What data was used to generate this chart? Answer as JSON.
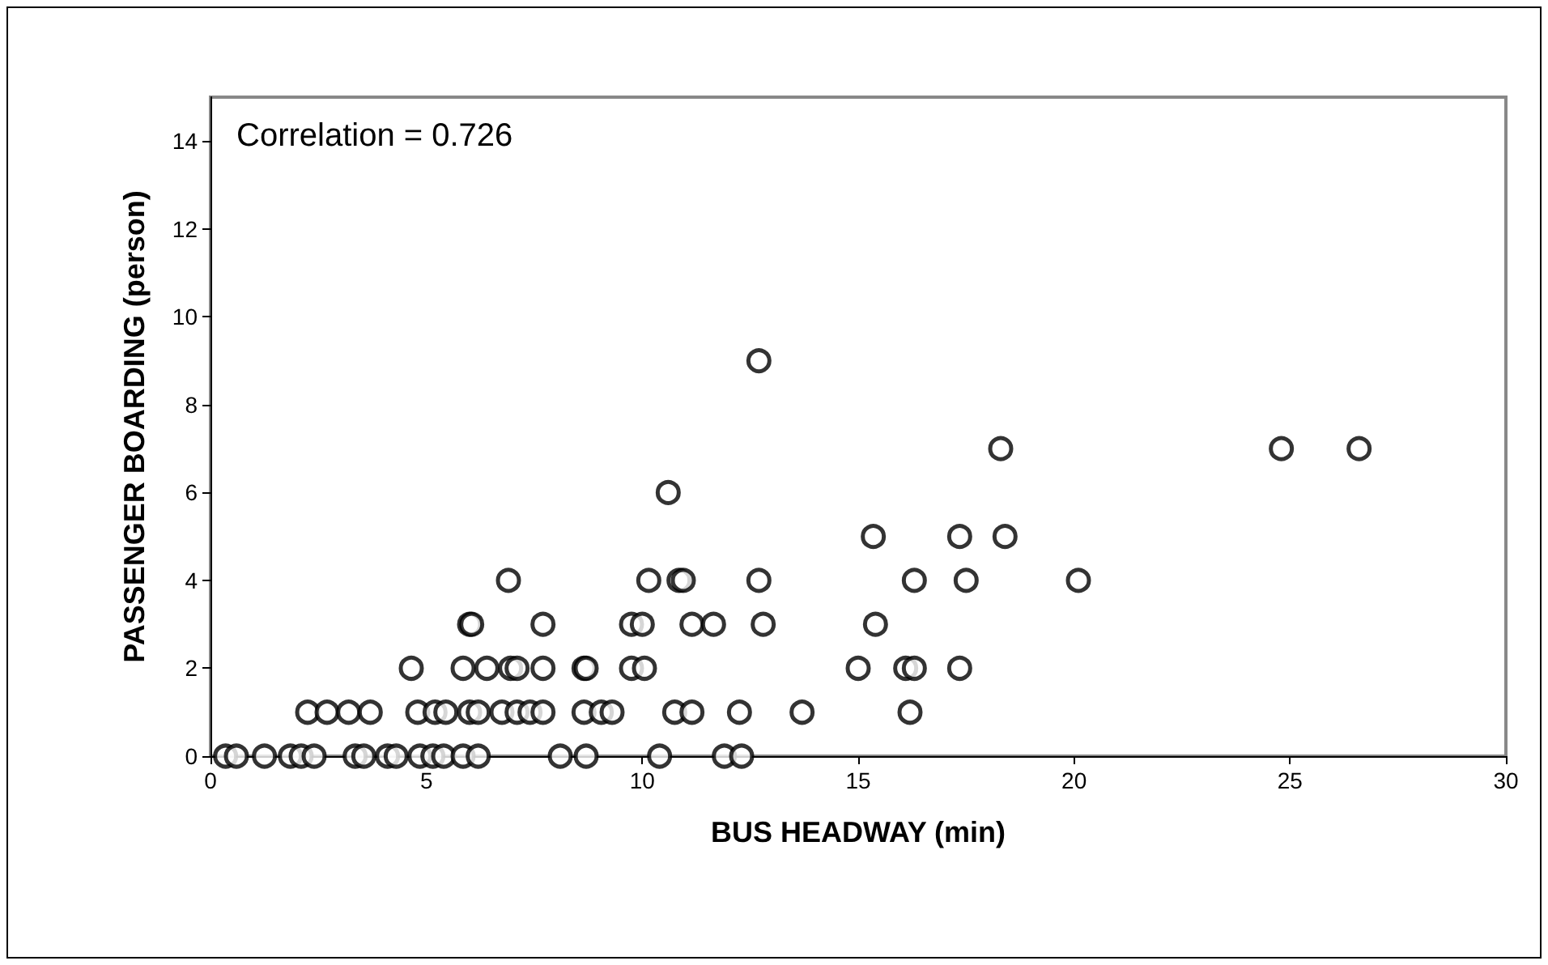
{
  "chart_data": {
    "type": "scatter",
    "xlabel": "BUS HEADWAY (min)",
    "ylabel": "PASSENGER BOARDING (person)",
    "annotations": [
      "Correlation = 0.726"
    ],
    "marker": "circle",
    "grid": false,
    "xlim": [
      0,
      30
    ],
    "xticks": [
      0,
      5,
      10,
      15,
      20,
      25,
      30
    ],
    "ylim": [
      0,
      15
    ],
    "yticks": [
      0,
      2,
      4,
      6,
      8,
      10,
      12,
      14
    ],
    "series": [
      {
        "color": "#000000",
        "x": [
          0.35,
          0.6,
          1.25,
          1.85,
          2.1,
          2.4,
          3.35,
          3.55,
          4.1,
          4.3,
          4.85,
          5.15,
          5.4,
          5.85,
          6.2,
          8.1,
          8.7,
          10.4,
          11.9,
          12.3,
          2.25,
          2.7,
          3.2,
          3.7,
          4.8,
          5.2,
          5.45,
          6.0,
          6.2,
          6.75,
          7.1,
          7.4,
          7.7,
          8.65,
          9.05,
          9.3,
          10.75,
          11.15,
          12.25,
          13.7,
          16.2,
          4.65,
          5.85,
          6.4,
          6.95,
          7.1,
          7.7,
          8.65,
          8.7,
          9.75,
          10.05,
          15.0,
          16.1,
          16.3,
          17.35,
          6.0,
          6.05,
          7.7,
          9.75,
          10.0,
          11.15,
          11.65,
          12.8,
          15.4,
          6.9,
          10.15,
          10.85,
          10.95,
          12.7,
          16.3,
          17.5,
          20.1,
          15.35,
          17.35,
          18.4,
          10.6,
          18.3,
          24.8,
          26.6,
          12.7
        ],
        "values": [
          0,
          0,
          0,
          0,
          0,
          0,
          0,
          0,
          0,
          0,
          0,
          0,
          0,
          0,
          0,
          0,
          0,
          0,
          0,
          0,
          1,
          1,
          1,
          1,
          1,
          1,
          1,
          1,
          1,
          1,
          1,
          1,
          1,
          1,
          1,
          1,
          1,
          1,
          1,
          1,
          1,
          2,
          2,
          2,
          2,
          2,
          2,
          2,
          2,
          2,
          2,
          2,
          2,
          2,
          2,
          3,
          3,
          3,
          3,
          3,
          3,
          3,
          3,
          3,
          4,
          4,
          4,
          4,
          4,
          4,
          4,
          4,
          5,
          5,
          5,
          6,
          7,
          7,
          7,
          9
        ]
      }
    ]
  }
}
